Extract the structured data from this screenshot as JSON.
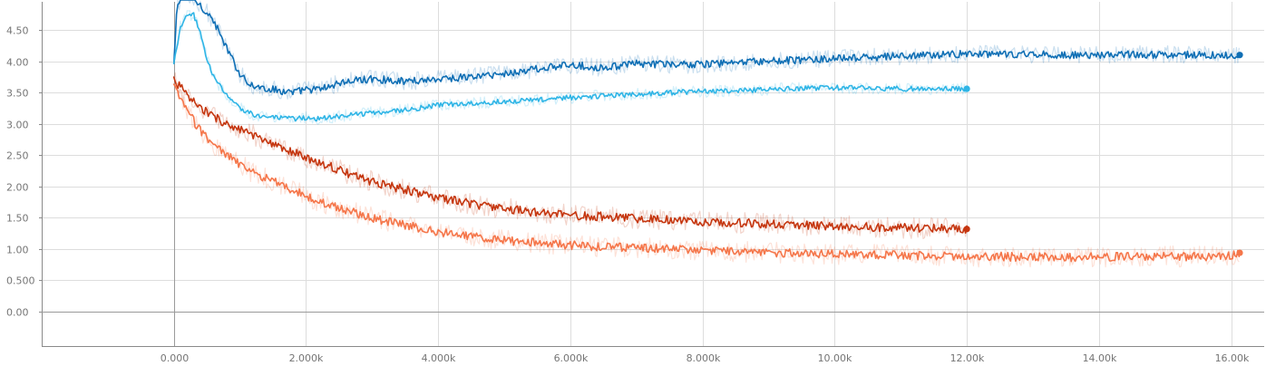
{
  "chart_data": {
    "type": "line",
    "grid": true,
    "legend": "none",
    "xlim": [
      -2000,
      16500
    ],
    "ylim": [
      -0.55,
      4.95
    ],
    "x_ticks": [
      {
        "value": 0,
        "label": "0.000"
      },
      {
        "value": 2000,
        "label": "2.000k"
      },
      {
        "value": 4000,
        "label": "4.000k"
      },
      {
        "value": 6000,
        "label": "6.000k"
      },
      {
        "value": 8000,
        "label": "8.000k"
      },
      {
        "value": 10000,
        "label": "10.00k"
      },
      {
        "value": 12000,
        "label": "12.00k"
      },
      {
        "value": 14000,
        "label": "14.00k"
      },
      {
        "value": 16000,
        "label": "16.00k"
      }
    ],
    "y_ticks": [
      {
        "value": 0,
        "label": "0.00"
      },
      {
        "value": 0.5,
        "label": "0.500"
      },
      {
        "value": 1.0,
        "label": "1.00"
      },
      {
        "value": 1.5,
        "label": "1.50"
      },
      {
        "value": 2.0,
        "label": "2.00"
      },
      {
        "value": 2.5,
        "label": "2.50"
      },
      {
        "value": 3.0,
        "label": "3.00"
      },
      {
        "value": 3.5,
        "label": "3.50"
      },
      {
        "value": 4.0,
        "label": "4.00"
      },
      {
        "value": 4.5,
        "label": "4.50"
      }
    ],
    "series": [
      {
        "color": "#0f6fb5",
        "end_marker": true,
        "noise": 0.06,
        "x": [
          0,
          50,
          150,
          250,
          400,
          600,
          800,
          1000,
          1200,
          1500,
          1800,
          2000,
          2200,
          2500,
          2800,
          3000,
          3500,
          4000,
          4500,
          5000,
          5500,
          6000,
          6500,
          7000,
          7500,
          8000,
          8500,
          9000,
          9500,
          10000,
          10500,
          11000,
          11500,
          12000,
          12500,
          13000,
          13500,
          14000,
          14500,
          15000,
          15500,
          16000,
          16130
        ],
        "y": [
          3.95,
          4.9,
          5.1,
          5.05,
          4.9,
          4.65,
          4.2,
          3.8,
          3.6,
          3.55,
          3.5,
          3.55,
          3.55,
          3.65,
          3.7,
          3.72,
          3.68,
          3.72,
          3.75,
          3.8,
          3.88,
          3.94,
          3.9,
          3.96,
          3.95,
          3.95,
          3.98,
          4.0,
          4.02,
          4.04,
          4.06,
          4.08,
          4.1,
          4.12,
          4.11,
          4.11,
          4.1,
          4.1,
          4.11,
          4.11,
          4.1,
          4.1,
          4.1
        ]
      },
      {
        "color": "#2fb5e6",
        "end_marker": true,
        "noise": 0.04,
        "x": [
          0,
          100,
          200,
          300,
          400,
          500,
          600,
          800,
          1000,
          1200,
          1500,
          1800,
          2000,
          2200,
          2500,
          3000,
          3500,
          4000,
          4500,
          5000,
          5500,
          6000,
          6500,
          7000,
          7500,
          8000,
          8500,
          9000,
          9500,
          10000,
          10500,
          11000,
          11500,
          12000
        ],
        "y": [
          3.95,
          4.55,
          4.72,
          4.74,
          4.45,
          4.05,
          3.75,
          3.45,
          3.25,
          3.15,
          3.1,
          3.08,
          3.1,
          3.08,
          3.12,
          3.18,
          3.22,
          3.3,
          3.33,
          3.36,
          3.38,
          3.42,
          3.45,
          3.47,
          3.5,
          3.52,
          3.53,
          3.55,
          3.57,
          3.58,
          3.57,
          3.56,
          3.56,
          3.56
        ]
      },
      {
        "color": "#c5360f",
        "end_marker": true,
        "noise": 0.07,
        "x": [
          0,
          200,
          400,
          600,
          800,
          1000,
          1200,
          1500,
          1800,
          2000,
          2300,
          2600,
          3000,
          3500,
          4000,
          4500,
          5000,
          5500,
          6000,
          6500,
          7000,
          7500,
          8000,
          8500,
          9000,
          9500,
          10000,
          10500,
          11000,
          11500,
          12000
        ],
        "y": [
          3.72,
          3.45,
          3.25,
          3.12,
          3.0,
          2.9,
          2.82,
          2.65,
          2.55,
          2.45,
          2.35,
          2.22,
          2.08,
          1.95,
          1.82,
          1.72,
          1.65,
          1.58,
          1.54,
          1.52,
          1.49,
          1.47,
          1.44,
          1.42,
          1.4,
          1.38,
          1.37,
          1.35,
          1.34,
          1.33,
          1.32
        ]
      },
      {
        "color": "#f5764a",
        "end_marker": true,
        "noise": 0.07,
        "x": [
          0,
          200,
          400,
          600,
          800,
          1000,
          1200,
          1500,
          1800,
          2000,
          2300,
          2600,
          3000,
          3500,
          4000,
          4500,
          5000,
          5500,
          6000,
          6500,
          7000,
          7500,
          8000,
          8500,
          9000,
          9500,
          10000,
          10500,
          11000,
          11500,
          12000,
          12500,
          13000,
          13500,
          14000,
          14500,
          15000,
          15500,
          16000,
          16130
        ],
        "y": [
          3.6,
          3.2,
          2.9,
          2.68,
          2.5,
          2.35,
          2.22,
          2.08,
          1.95,
          1.85,
          1.72,
          1.62,
          1.5,
          1.38,
          1.28,
          1.2,
          1.14,
          1.1,
          1.06,
          1.04,
          1.02,
          1.0,
          0.98,
          0.96,
          0.95,
          0.93,
          0.92,
          0.91,
          0.9,
          0.89,
          0.88,
          0.88,
          0.87,
          0.87,
          0.87,
          0.88,
          0.88,
          0.88,
          0.9,
          0.94
        ]
      }
    ]
  }
}
